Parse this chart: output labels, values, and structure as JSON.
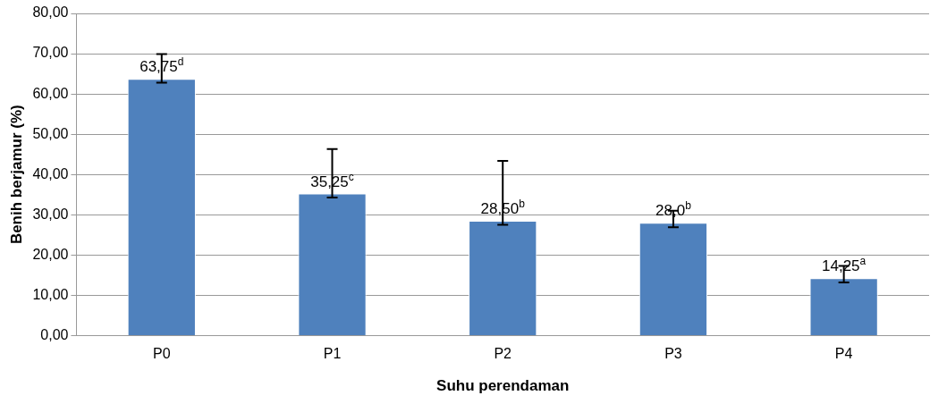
{
  "chart_data": {
    "type": "bar",
    "xlabel": "Suhu perendaman",
    "ylabel": "Benih berjamur (%)",
    "categories": [
      "P0",
      "P1",
      "P2",
      "P3",
      "P4"
    ],
    "values": [
      63.75,
      35.25,
      28.5,
      28.0,
      14.25
    ],
    "color": "#4f81bd",
    "errors": [
      [
        62.8,
        69.9
      ],
      [
        34.3,
        46.3
      ],
      [
        27.5,
        43.4
      ],
      [
        26.9,
        31.0
      ],
      [
        13.2,
        17.3
      ]
    ],
    "value_labels": [
      "63,75$^{d}$",
      "35,25$^{c}$",
      "28,50$^{b}$",
      "28,0$^{b}$",
      "14,25$^{a}$"
    ],
    "ylim": [
      0,
      80
    ],
    "yticks": [
      {
        "value": 0,
        "label": "0,00"
      },
      {
        "value": 10,
        "label": "10,00"
      },
      {
        "value": 20,
        "label": "20,00"
      },
      {
        "value": 30,
        "label": "30,00"
      },
      {
        "value": 40,
        "label": "40,00"
      },
      {
        "value": 50,
        "label": "50,00"
      },
      {
        "value": 60,
        "label": "60,00"
      },
      {
        "value": 70,
        "label": "70,00"
      },
      {
        "value": 80,
        "label": "80,00"
      }
    ],
    "grid": "y",
    "legend": false
  }
}
